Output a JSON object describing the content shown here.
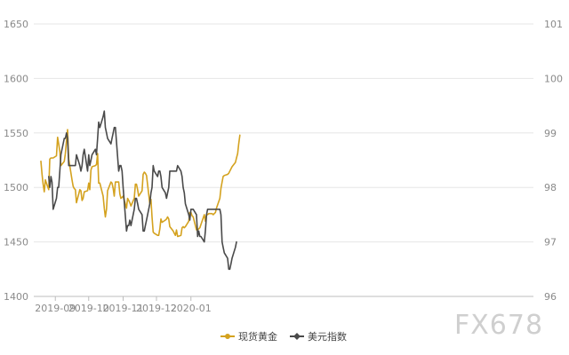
{
  "chart_data": {
    "type": "line",
    "title": "",
    "xlabel": "",
    "ylabel": "",
    "x_ticks": [
      "2019-09",
      "2019-10",
      "2019-11",
      "2019-12",
      "2020-01"
    ],
    "y_left": {
      "ticks": [
        "1400",
        "1450",
        "1500",
        "1550",
        "1600",
        "1650"
      ],
      "range": [
        1400,
        1650
      ]
    },
    "y_right": {
      "ticks": [
        "96",
        "97",
        "98",
        "99",
        "100",
        "101"
      ],
      "range": [
        96,
        101
      ]
    },
    "grid": "horizontal",
    "legend_position": "bottom-center",
    "series": [
      {
        "name": "现货黄金",
        "axis": "left",
        "color": "#d4a21f",
        "points": [
          [
            "2019-08-19",
            1524
          ],
          [
            "2019-08-20",
            1512
          ],
          [
            "2019-08-21",
            1503
          ],
          [
            "2019-08-22",
            1496
          ],
          [
            "2019-08-23",
            1507
          ],
          [
            "2019-08-26",
            1498
          ],
          [
            "2019-08-27",
            1526
          ],
          [
            "2019-08-28",
            1527
          ],
          [
            "2019-08-29",
            1527
          ],
          [
            "2019-08-30",
            1527
          ],
          [
            "2019-09-02",
            1529
          ],
          [
            "2019-09-03",
            1546
          ],
          [
            "2019-09-04",
            1540
          ],
          [
            "2019-09-05",
            1533
          ],
          [
            "2019-09-06",
            1520
          ],
          [
            "2019-09-09",
            1524
          ],
          [
            "2019-09-10",
            1531
          ],
          [
            "2019-09-11",
            1543
          ],
          [
            "2019-09-12",
            1553
          ],
          [
            "2019-09-13",
            1526
          ],
          [
            "2019-09-16",
            1507
          ],
          [
            "2019-09-17",
            1501
          ],
          [
            "2019-09-18",
            1499
          ],
          [
            "2019-09-19",
            1498
          ],
          [
            "2019-09-20",
            1486
          ],
          [
            "2019-09-23",
            1498
          ],
          [
            "2019-09-24",
            1497
          ],
          [
            "2019-09-25",
            1488
          ],
          [
            "2019-09-26",
            1490
          ],
          [
            "2019-09-27",
            1496
          ],
          [
            "2019-09-30",
            1497
          ],
          [
            "2019-10-01",
            1504
          ],
          [
            "2019-10-02",
            1498
          ],
          [
            "2019-10-03",
            1516
          ],
          [
            "2019-10-04",
            1519
          ],
          [
            "2019-10-07",
            1520
          ],
          [
            "2019-10-08",
            1521
          ],
          [
            "2019-10-09",
            1531
          ],
          [
            "2019-10-10",
            1504
          ],
          [
            "2019-10-11",
            1504
          ],
          [
            "2019-10-14",
            1492
          ],
          [
            "2019-10-15",
            1481
          ],
          [
            "2019-10-16",
            1473
          ],
          [
            "2019-10-17",
            1480
          ],
          [
            "2019-10-18",
            1497
          ],
          [
            "2019-10-21",
            1505
          ],
          [
            "2019-10-22",
            1504
          ],
          [
            "2019-10-23",
            1499
          ],
          [
            "2019-10-24",
            1492
          ],
          [
            "2019-10-25",
            1505
          ],
          [
            "2019-10-28",
            1505
          ],
          [
            "2019-10-29",
            1494
          ],
          [
            "2019-10-30",
            1490
          ],
          [
            "2019-10-31",
            1491
          ],
          [
            "2019-11-01",
            1492
          ],
          [
            "2019-11-04",
            1481
          ],
          [
            "2019-11-05",
            1490
          ],
          [
            "2019-11-06",
            1488
          ],
          [
            "2019-11-07",
            1486
          ],
          [
            "2019-11-08",
            1483
          ],
          [
            "2019-11-11",
            1490
          ],
          [
            "2019-11-12",
            1503
          ],
          [
            "2019-11-13",
            1503
          ],
          [
            "2019-11-14",
            1498
          ],
          [
            "2019-11-15",
            1492
          ],
          [
            "2019-11-18",
            1497
          ],
          [
            "2019-11-19",
            1512
          ],
          [
            "2019-11-20",
            1514
          ],
          [
            "2019-11-21",
            1513
          ],
          [
            "2019-11-22",
            1511
          ],
          [
            "2019-11-25",
            1485
          ],
          [
            "2019-11-26",
            1489
          ],
          [
            "2019-11-27",
            1473
          ],
          [
            "2019-11-28",
            1459
          ],
          [
            "2019-11-29",
            1458
          ],
          [
            "2019-12-02",
            1456
          ],
          [
            "2019-12-03",
            1456
          ],
          [
            "2019-12-04",
            1462
          ],
          [
            "2019-12-05",
            1471
          ],
          [
            "2019-12-06",
            1468
          ],
          [
            "2019-12-09",
            1470
          ],
          [
            "2019-12-10",
            1471
          ],
          [
            "2019-12-11",
            1473
          ],
          [
            "2019-12-12",
            1471
          ],
          [
            "2019-12-13",
            1464
          ],
          [
            "2019-12-16",
            1460
          ],
          [
            "2019-12-17",
            1458
          ],
          [
            "2019-12-18",
            1456
          ],
          [
            "2019-12-19",
            1461
          ],
          [
            "2019-12-20",
            1455
          ],
          [
            "2019-12-23",
            1456
          ],
          [
            "2019-12-24",
            1463
          ],
          [
            "2019-12-25",
            1464
          ],
          [
            "2019-12-26",
            1463
          ],
          [
            "2019-12-27",
            1464
          ],
          [
            "2019-12-30",
            1469
          ],
          [
            "2019-12-31",
            1477
          ],
          [
            "2020-01-01",
            1477
          ],
          [
            "2020-01-02",
            1474
          ],
          [
            "2020-01-03",
            1473
          ],
          [
            "2020-01-06",
            1461
          ],
          [
            "2020-01-07",
            1461
          ],
          [
            "2020-01-08",
            1462
          ],
          [
            "2020-01-09",
            1463
          ],
          [
            "2020-01-10",
            1466
          ],
          [
            "2020-01-13",
            1475
          ],
          [
            "2020-01-14",
            1469
          ],
          [
            "2020-01-15",
            1475
          ],
          [
            "2020-01-16",
            1475
          ],
          [
            "2020-01-17",
            1476
          ],
          [
            "2020-01-20",
            1476
          ],
          [
            "2020-01-21",
            1475
          ],
          [
            "2020-01-22",
            1476
          ],
          [
            "2020-01-23",
            1477
          ],
          [
            "2020-01-24",
            1481
          ],
          [
            "2020-01-27",
            1490
          ],
          [
            "2020-01-28",
            1499
          ],
          [
            "2020-01-29",
            1505
          ],
          [
            "2020-01-30",
            1510
          ],
          [
            "2020-01-31",
            1511
          ],
          [
            "2020-02-03",
            1512
          ],
          [
            "2020-02-04",
            1513
          ],
          [
            "2020-02-05",
            1515
          ],
          [
            "2020-02-06",
            1517
          ],
          [
            "2020-02-07",
            1519
          ],
          [
            "2020-02-10",
            1523
          ],
          [
            "2020-02-11",
            1527
          ],
          [
            "2020-02-12",
            1531
          ],
          [
            "2020-02-13",
            1540
          ],
          [
            "2020-02-14",
            1548
          ]
        ]
      },
      {
        "name": "美元指数",
        "axis": "right",
        "color": "#4a4a4a",
        "points": [
          [
            "2019-08-26",
            98.2
          ],
          [
            "2019-08-27",
            98.0
          ],
          [
            "2019-08-28",
            98.2
          ],
          [
            "2019-08-29",
            98.1
          ],
          [
            "2019-08-30",
            97.6
          ],
          [
            "2019-09-02",
            97.8
          ],
          [
            "2019-09-03",
            98.0
          ],
          [
            "2019-09-04",
            98.0
          ],
          [
            "2019-09-05",
            98.3
          ],
          [
            "2019-09-06",
            98.6
          ],
          [
            "2019-09-09",
            98.9
          ],
          [
            "2019-09-10",
            98.9
          ],
          [
            "2019-09-11",
            99.0
          ],
          [
            "2019-09-12",
            98.9
          ],
          [
            "2019-09-13",
            98.4
          ],
          [
            "2019-09-16",
            98.4
          ],
          [
            "2019-09-17",
            98.4
          ],
          [
            "2019-09-18",
            98.4
          ],
          [
            "2019-09-19",
            98.4
          ],
          [
            "2019-09-20",
            98.6
          ],
          [
            "2019-09-23",
            98.4
          ],
          [
            "2019-09-24",
            98.3
          ],
          [
            "2019-09-25",
            98.4
          ],
          [
            "2019-09-26",
            98.6
          ],
          [
            "2019-09-27",
            98.7
          ],
          [
            "2019-09-30",
            98.3
          ],
          [
            "2019-10-01",
            98.6
          ],
          [
            "2019-10-02",
            98.4
          ],
          [
            "2019-10-03",
            98.5
          ],
          [
            "2019-10-04",
            98.6
          ],
          [
            "2019-10-07",
            98.7
          ],
          [
            "2019-10-08",
            98.6
          ],
          [
            "2019-10-09",
            98.9
          ],
          [
            "2019-10-10",
            99.2
          ],
          [
            "2019-10-11",
            99.1
          ],
          [
            "2019-10-14",
            99.3
          ],
          [
            "2019-10-15",
            99.4
          ],
          [
            "2019-10-16",
            99.1
          ],
          [
            "2019-10-17",
            99.0
          ],
          [
            "2019-10-18",
            98.9
          ],
          [
            "2019-10-21",
            98.8
          ],
          [
            "2019-10-22",
            98.9
          ],
          [
            "2019-10-23",
            99.0
          ],
          [
            "2019-10-24",
            99.1
          ],
          [
            "2019-10-25",
            99.1
          ],
          [
            "2019-10-28",
            98.3
          ],
          [
            "2019-10-29",
            98.4
          ],
          [
            "2019-10-30",
            98.4
          ],
          [
            "2019-10-31",
            98.3
          ],
          [
            "2019-11-01",
            98.0
          ],
          [
            "2019-11-04",
            97.2
          ],
          [
            "2019-11-05",
            97.3
          ],
          [
            "2019-11-06",
            97.3
          ],
          [
            "2019-11-07",
            97.4
          ],
          [
            "2019-11-08",
            97.3
          ],
          [
            "2019-11-11",
            97.6
          ],
          [
            "2019-11-12",
            97.8
          ],
          [
            "2019-11-13",
            97.8
          ],
          [
            "2019-11-14",
            97.7
          ],
          [
            "2019-11-15",
            97.6
          ],
          [
            "2019-11-18",
            97.5
          ],
          [
            "2019-11-19",
            97.2
          ],
          [
            "2019-11-20",
            97.2
          ],
          [
            "2019-11-21",
            97.3
          ],
          [
            "2019-11-22",
            97.4
          ],
          [
            "2019-11-25",
            97.7
          ],
          [
            "2019-11-26",
            97.9
          ],
          [
            "2019-11-27",
            98.0
          ],
          [
            "2019-11-28",
            98.4
          ],
          [
            "2019-11-29",
            98.3
          ],
          [
            "2019-12-02",
            98.2
          ],
          [
            "2019-12-03",
            98.3
          ],
          [
            "2019-12-04",
            98.3
          ],
          [
            "2019-12-05",
            98.2
          ],
          [
            "2019-12-06",
            98.0
          ],
          [
            "2019-12-09",
            97.9
          ],
          [
            "2019-12-10",
            97.8
          ],
          [
            "2019-12-11",
            97.9
          ],
          [
            "2019-12-12",
            98.0
          ],
          [
            "2019-12-13",
            98.3
          ],
          [
            "2019-12-16",
            98.3
          ],
          [
            "2019-12-17",
            98.3
          ],
          [
            "2019-12-18",
            98.3
          ],
          [
            "2019-12-19",
            98.3
          ],
          [
            "2019-12-20",
            98.4
          ],
          [
            "2019-12-23",
            98.3
          ],
          [
            "2019-12-24",
            98.2
          ],
          [
            "2019-12-25",
            98.0
          ],
          [
            "2019-12-26",
            97.9
          ],
          [
            "2019-12-27",
            97.7
          ],
          [
            "2019-12-30",
            97.5
          ],
          [
            "2019-12-31",
            97.4
          ],
          [
            "2020-01-01",
            97.6
          ],
          [
            "2020-01-02",
            97.6
          ],
          [
            "2020-01-03",
            97.6
          ],
          [
            "2020-01-06",
            97.5
          ],
          [
            "2020-01-07",
            97.1
          ],
          [
            "2020-01-08",
            97.2
          ],
          [
            "2020-01-09",
            97.1
          ],
          [
            "2020-01-10",
            97.1
          ],
          [
            "2020-01-13",
            97.0
          ],
          [
            "2020-01-14",
            97.2
          ],
          [
            "2020-01-15",
            97.5
          ],
          [
            "2020-01-16",
            97.6
          ],
          [
            "2020-01-17",
            97.6
          ],
          [
            "2020-01-20",
            97.6
          ],
          [
            "2020-01-21",
            97.6
          ],
          [
            "2020-01-22",
            97.6
          ],
          [
            "2020-01-23",
            97.6
          ],
          [
            "2020-01-24",
            97.6
          ],
          [
            "2020-01-27",
            97.6
          ],
          [
            "2020-01-28",
            97.5
          ],
          [
            "2020-01-29",
            97.0
          ],
          [
            "2020-01-30",
            96.9
          ],
          [
            "2020-01-31",
            96.8
          ],
          [
            "2020-02-03",
            96.7
          ],
          [
            "2020-02-04",
            96.5
          ],
          [
            "2020-02-05",
            96.5
          ],
          [
            "2020-02-06",
            96.6
          ],
          [
            "2020-02-07",
            96.7
          ],
          [
            "2020-02-10",
            96.9
          ],
          [
            "2020-02-11",
            97.0
          ]
        ]
      }
    ]
  },
  "legend": {
    "items": [
      {
        "label": "现货黄金",
        "color": "#d4a21f"
      },
      {
        "label": "美元指数",
        "color": "#4a4a4a"
      }
    ]
  },
  "watermark": "FX678"
}
